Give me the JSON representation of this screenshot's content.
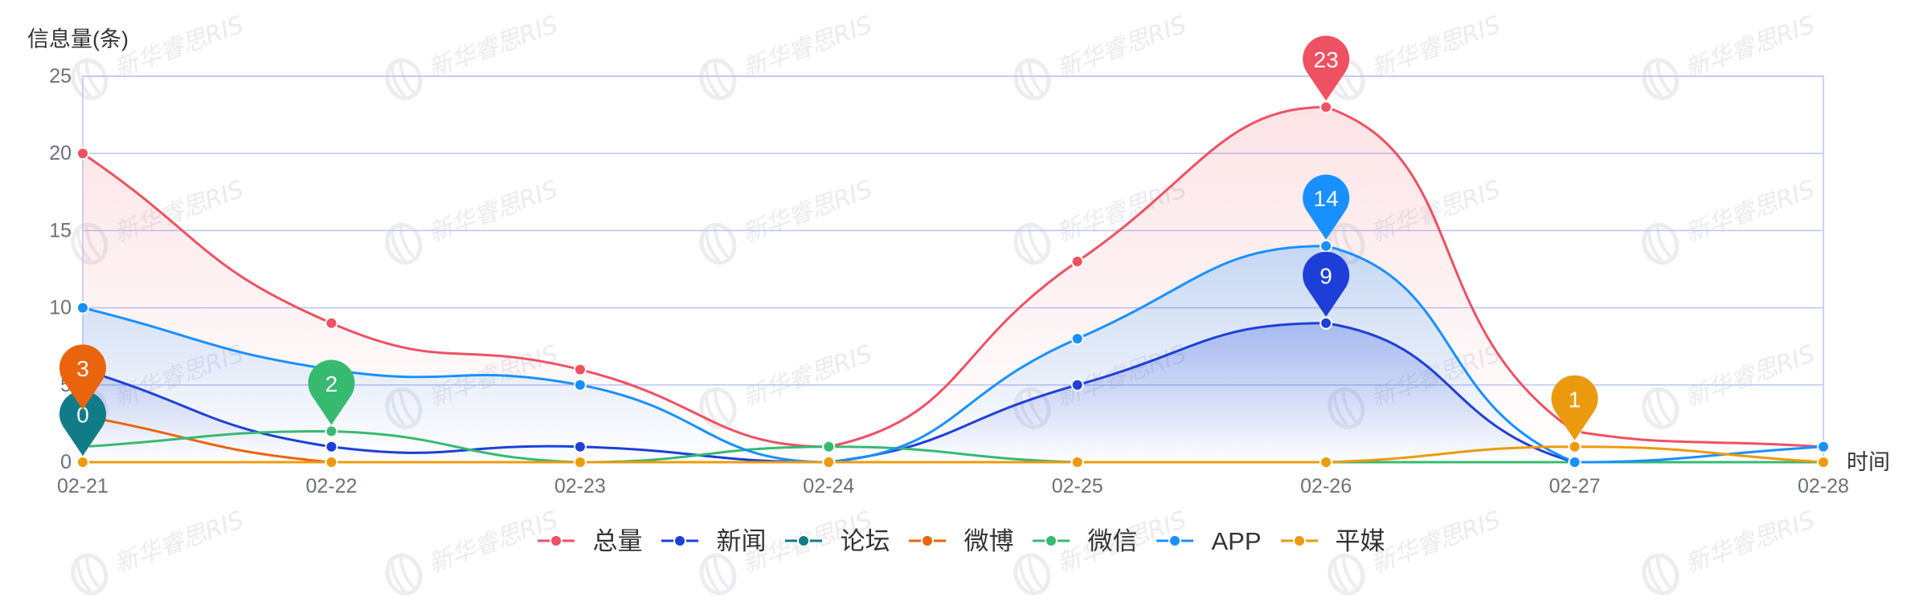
{
  "watermark": {
    "text": "新华睿思RIS"
  },
  "chart_data": {
    "type": "line",
    "ylabel": "信息量(条)",
    "xlabel": "时间",
    "categories": [
      "02-21",
      "02-22",
      "02-23",
      "02-24",
      "02-25",
      "02-26",
      "02-27",
      "02-28"
    ],
    "yticks": [
      0,
      5,
      10,
      15,
      20,
      25
    ],
    "ylim": [
      0,
      25
    ],
    "grid": true,
    "smooth": true,
    "legend": "bottom-center",
    "mark_point": "max",
    "series": [
      {
        "name": "总量",
        "color": "#ee5162",
        "area": true,
        "values": [
          20,
          9,
          6,
          1,
          13,
          23,
          2,
          1
        ]
      },
      {
        "name": "新闻",
        "color": "#1d3fd8",
        "area": true,
        "values": [
          6,
          1,
          1,
          0,
          5,
          9,
          0,
          0
        ]
      },
      {
        "name": "论坛",
        "color": "#117c87",
        "area": false,
        "values": [
          0,
          0,
          0,
          0,
          0,
          0,
          0,
          0
        ]
      },
      {
        "name": "微博",
        "color": "#ea640e",
        "area": false,
        "values": [
          3,
          0,
          0,
          0,
          0,
          0,
          0,
          0
        ]
      },
      {
        "name": "微信",
        "color": "#36ba70",
        "area": false,
        "values": [
          1,
          2,
          0,
          1,
          0,
          0,
          0,
          0
        ]
      },
      {
        "name": "APP",
        "color": "#1890ff",
        "area": true,
        "values": [
          10,
          6,
          5,
          0,
          8,
          14,
          0,
          1
        ]
      },
      {
        "name": "平媒",
        "color": "#ec9a0d",
        "area": false,
        "values": [
          0,
          0,
          0,
          0,
          0,
          0,
          1,
          0
        ]
      }
    ]
  }
}
